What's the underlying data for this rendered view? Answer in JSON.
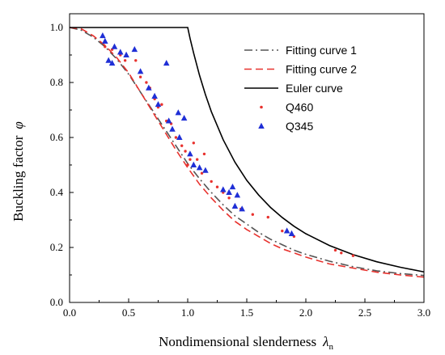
{
  "chart_data": {
    "type": "line",
    "xlabel": "Nondimensional slenderness",
    "xlabel_symbol": "λ",
    "xlabel_subscript": "n",
    "ylabel": "Buckling factor",
    "ylabel_symbol": "φ",
    "xlim": [
      0.0,
      3.0
    ],
    "ylim": [
      0.0,
      1.05
    ],
    "x_ticks": [
      "0.0",
      "0.5",
      "1.0",
      "1.5",
      "2.0",
      "2.5",
      "3.0"
    ],
    "y_ticks": [
      "0.0",
      "0.2",
      "0.4",
      "0.6",
      "0.8",
      "1.0"
    ],
    "legend_position": "top-right",
    "series": [
      {
        "name": "Fitting curve 1",
        "kind": "line",
        "style": "dash-dot",
        "color": "#555555",
        "x": [
          0.0,
          0.1,
          0.2,
          0.3,
          0.4,
          0.5,
          0.6,
          0.7,
          0.8,
          0.9,
          1.0,
          1.1,
          1.2,
          1.3,
          1.4,
          1.5,
          1.6,
          1.7,
          1.8,
          1.9,
          2.0,
          2.2,
          2.4,
          2.6,
          2.8,
          3.0
        ],
        "y": [
          1.0,
          0.99,
          0.965,
          0.93,
          0.885,
          0.83,
          0.765,
          0.7,
          0.635,
          0.57,
          0.505,
          0.45,
          0.4,
          0.355,
          0.315,
          0.285,
          0.255,
          0.23,
          0.21,
          0.19,
          0.175,
          0.15,
          0.13,
          0.115,
          0.105,
          0.098
        ]
      },
      {
        "name": "Fitting curve 2",
        "kind": "line",
        "style": "dashed",
        "color": "#e8322e",
        "x": [
          0.0,
          0.1,
          0.2,
          0.3,
          0.4,
          0.5,
          0.6,
          0.7,
          0.8,
          0.9,
          1.0,
          1.1,
          1.2,
          1.3,
          1.4,
          1.5,
          1.6,
          1.7,
          1.8,
          1.9,
          2.0,
          2.2,
          2.4,
          2.6,
          2.8,
          3.0
        ],
        "y": [
          1.0,
          0.995,
          0.97,
          0.935,
          0.89,
          0.835,
          0.765,
          0.695,
          0.625,
          0.555,
          0.49,
          0.43,
          0.38,
          0.335,
          0.295,
          0.265,
          0.24,
          0.215,
          0.195,
          0.18,
          0.165,
          0.14,
          0.125,
          0.11,
          0.1,
          0.092
        ]
      },
      {
        "name": "Euler curve",
        "kind": "line",
        "style": "solid",
        "color": "#000000",
        "x": [
          0.0,
          1.0,
          1.0,
          1.02,
          1.05,
          1.1,
          1.15,
          1.2,
          1.3,
          1.4,
          1.5,
          1.6,
          1.7,
          1.8,
          1.9,
          2.0,
          2.2,
          2.4,
          2.6,
          2.8,
          3.0
        ],
        "y": [
          1.0,
          1.0,
          1.0,
          0.96,
          0.907,
          0.826,
          0.756,
          0.694,
          0.592,
          0.51,
          0.444,
          0.391,
          0.346,
          0.309,
          0.277,
          0.25,
          0.207,
          0.174,
          0.148,
          0.128,
          0.111
        ]
      },
      {
        "name": "Q460",
        "kind": "scatter",
        "marker": "dot",
        "color": "#e8322e",
        "points": [
          [
            0.3,
            0.93
          ],
          [
            0.36,
            0.92
          ],
          [
            0.43,
            0.9
          ],
          [
            0.47,
            0.88
          ],
          [
            0.56,
            0.88
          ],
          [
            0.6,
            0.82
          ],
          [
            0.65,
            0.8
          ],
          [
            0.68,
            0.78
          ],
          [
            0.72,
            0.74
          ],
          [
            0.75,
            0.71
          ],
          [
            0.78,
            0.72
          ],
          [
            0.82,
            0.66
          ],
          [
            0.86,
            0.65
          ],
          [
            0.9,
            0.6
          ],
          [
            0.95,
            0.57
          ],
          [
            0.98,
            0.55
          ],
          [
            1.0,
            0.5
          ],
          [
            1.02,
            0.52
          ],
          [
            1.05,
            0.58
          ],
          [
            1.08,
            0.52
          ],
          [
            1.12,
            0.47
          ],
          [
            1.14,
            0.54
          ],
          [
            1.2,
            0.44
          ],
          [
            1.25,
            0.42
          ],
          [
            1.3,
            0.4
          ],
          [
            1.35,
            0.38
          ],
          [
            1.45,
            0.34
          ],
          [
            1.55,
            0.32
          ],
          [
            1.68,
            0.31
          ],
          [
            1.8,
            0.26
          ],
          [
            1.9,
            0.24
          ],
          [
            2.25,
            0.19
          ],
          [
            2.3,
            0.18
          ],
          [
            2.4,
            0.17
          ]
        ]
      },
      {
        "name": "Q345",
        "kind": "scatter",
        "marker": "triangle",
        "color": "#1f2fd6",
        "points": [
          [
            0.28,
            0.97
          ],
          [
            0.3,
            0.95
          ],
          [
            0.33,
            0.88
          ],
          [
            0.36,
            0.87
          ],
          [
            0.38,
            0.93
          ],
          [
            0.43,
            0.91
          ],
          [
            0.48,
            0.9
          ],
          [
            0.55,
            0.92
          ],
          [
            0.6,
            0.84
          ],
          [
            0.67,
            0.78
          ],
          [
            0.72,
            0.75
          ],
          [
            0.75,
            0.72
          ],
          [
            0.82,
            0.87
          ],
          [
            0.84,
            0.66
          ],
          [
            0.87,
            0.63
          ],
          [
            0.92,
            0.69
          ],
          [
            0.93,
            0.6
          ],
          [
            0.97,
            0.67
          ],
          [
            1.02,
            0.54
          ],
          [
            1.05,
            0.5
          ],
          [
            1.1,
            0.49
          ],
          [
            1.15,
            0.48
          ],
          [
            1.3,
            0.41
          ],
          [
            1.35,
            0.4
          ],
          [
            1.38,
            0.42
          ],
          [
            1.4,
            0.35
          ],
          [
            1.42,
            0.39
          ],
          [
            1.46,
            0.34
          ],
          [
            1.84,
            0.26
          ],
          [
            1.88,
            0.25
          ]
        ]
      }
    ]
  }
}
